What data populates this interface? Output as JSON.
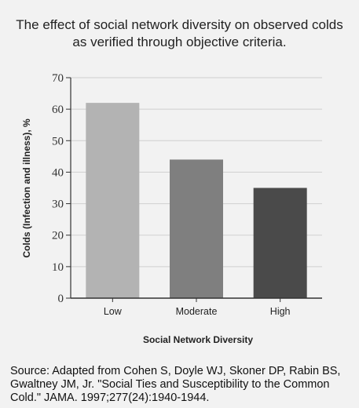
{
  "chart_data": {
    "type": "bar",
    "title_lines": [
      "The effect of social network diversity on observed colds",
      "as verified through objective criteria."
    ],
    "categories": [
      "Low",
      "Moderate",
      "High"
    ],
    "values": [
      62,
      44,
      35
    ],
    "colors": [
      "#b3b3b3",
      "#7f7f7f",
      "#4a4a4a"
    ],
    "xlabel": "Social Network Diversity",
    "ylabel": "Colds (Infection and illness), %",
    "ylim": [
      0,
      70
    ],
    "yticks": [
      0,
      10,
      20,
      30,
      40,
      50,
      60,
      70
    ],
    "grid": true
  },
  "source_text": "Source: Adapted from Cohen S, Doyle WJ, Skoner DP, Rabin BS, Gwaltney JM, Jr. \"Social Ties and Susceptibility to the Common Cold.\" JAMA. 1997;277(24):1940-1944."
}
